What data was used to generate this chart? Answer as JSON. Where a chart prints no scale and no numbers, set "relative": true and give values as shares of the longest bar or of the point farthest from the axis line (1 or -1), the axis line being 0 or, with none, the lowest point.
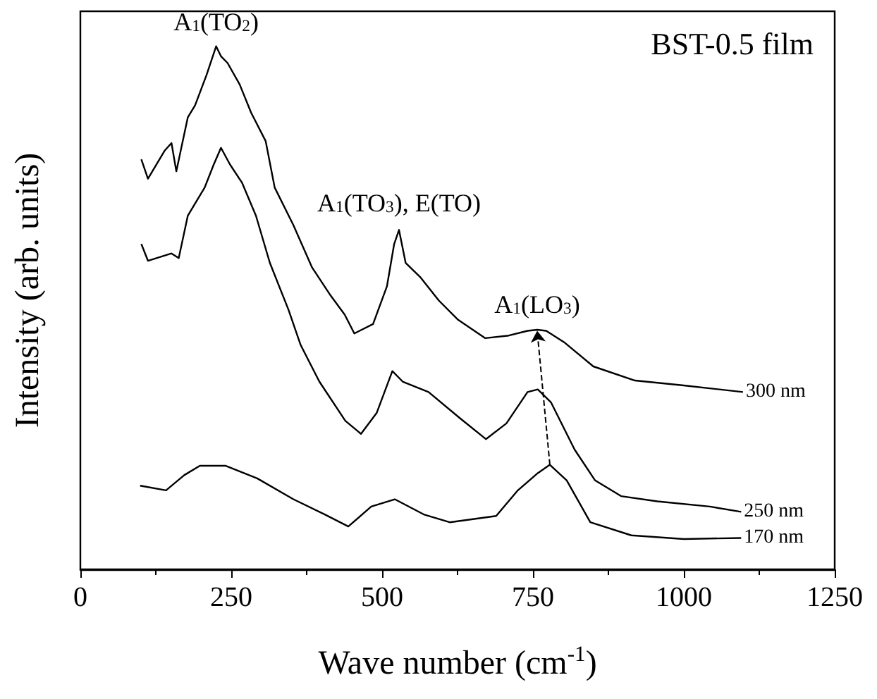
{
  "chart_data": {
    "type": "line",
    "relative": true,
    "xlabel": "Wave number (cm$^{-1}$)",
    "ylabel": "Intensity (arb. units)",
    "xlim": [
      0,
      1250
    ],
    "xticks": [
      0,
      250,
      500,
      750,
      1000,
      1250
    ],
    "grid": false,
    "legend": false,
    "marker": "none",
    "line_style": "solid",
    "annotations": [
      {
        "text": "A$_{1}$(TO$_{2}$)",
        "x": 225,
        "y": 0.995
      },
      {
        "text": "A$_{1}$(TO$_{3}$), E(TO)",
        "x": 528,
        "y": 0.649
      },
      {
        "text": "A$_{1}$(LO$_{3}$)",
        "x": 757,
        "y": 0.456
      },
      "BST-0.5 film"
    ],
    "series": [
      {
        "name": "300 nm",
        "color": "#000000",
        "x": [
          101,
          112,
          140,
          151,
          159,
          178,
          190,
          209,
          225,
          233,
          244,
          264,
          283,
          307,
          322,
          353,
          384,
          415,
          438,
          454,
          485,
          508,
          520,
          528,
          539,
          563,
          594,
          625,
          671,
          710,
          741,
          757,
          772,
          803,
          850,
          919,
          997,
          1098
        ],
        "values": [
          0.784,
          0.747,
          0.801,
          0.815,
          0.761,
          0.864,
          0.887,
          0.945,
          1.0,
          0.981,
          0.968,
          0.927,
          0.873,
          0.819,
          0.73,
          0.658,
          0.577,
          0.523,
          0.487,
          0.451,
          0.469,
          0.541,
          0.622,
          0.649,
          0.586,
          0.559,
          0.514,
          0.478,
          0.442,
          0.447,
          0.456,
          0.458,
          0.456,
          0.433,
          0.388,
          0.361,
          0.352,
          0.339
        ]
      },
      {
        "name": "250 nm",
        "color": "#000000",
        "x": [
          101,
          112,
          151,
          163,
          178,
          206,
          221,
          233,
          248,
          268,
          291,
          314,
          345,
          365,
          396,
          439,
          465,
          491,
          517,
          534,
          577,
          629,
          672,
          706,
          741,
          758,
          780,
          819,
          853,
          896,
          956,
          1043,
          1095
        ],
        "values": [
          0.622,
          0.59,
          0.604,
          0.595,
          0.676,
          0.73,
          0.774,
          0.806,
          0.774,
          0.739,
          0.676,
          0.586,
          0.496,
          0.429,
          0.359,
          0.284,
          0.259,
          0.299,
          0.379,
          0.359,
          0.339,
          0.289,
          0.249,
          0.279,
          0.339,
          0.344,
          0.319,
          0.229,
          0.17,
          0.14,
          0.13,
          0.12,
          0.11
        ]
      },
      {
        "name": "170 nm",
        "color": "#000000",
        "x": [
          99,
          142,
          172,
          198,
          241,
          293,
          353,
          405,
          444,
          482,
          521,
          569,
          612,
          689,
          724,
          758,
          778,
          806,
          845,
          913,
          1000,
          1095
        ],
        "values": [
          0.16,
          0.151,
          0.18,
          0.198,
          0.198,
          0.174,
          0.134,
          0.105,
          0.082,
          0.12,
          0.134,
          0.105,
          0.09,
          0.102,
          0.15,
          0.184,
          0.2,
          0.17,
          0.09,
          0.065,
          0.058,
          0.06
        ]
      }
    ]
  }
}
